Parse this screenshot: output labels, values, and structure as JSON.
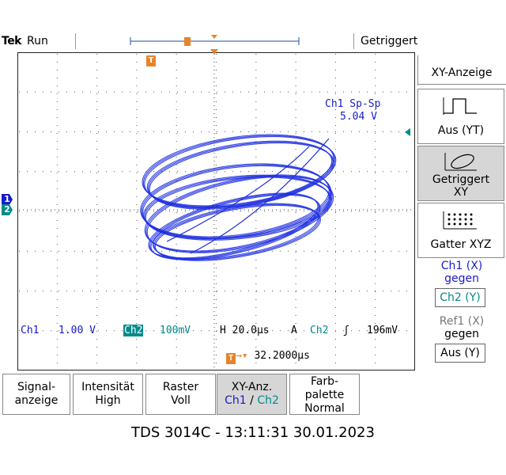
{
  "header": {
    "brand": "Tek",
    "run_state": "Run",
    "trigger_state": "Getriggert",
    "trigger_marker": "T"
  },
  "measurement": {
    "label": "Ch1 Sp-Sp",
    "value": "5.04 V"
  },
  "status": {
    "ch1_label": "Ch1",
    "ch1_scale": "1.00 V",
    "ch2_label": "Ch2",
    "ch2_scale": "100mV",
    "timebase": "H 20.0µs",
    "acq": "A",
    "trig_source": "Ch2",
    "trig_level": "196mV",
    "delay": "32.2000µs"
  },
  "side_menu": {
    "title": "XY-Anzeige",
    "btn_yt_label": "Aus (YT)",
    "btn_xy_line1": "Getriggert",
    "btn_xy_line2": "XY",
    "btn_xyz_label": "Gatter XYZ",
    "ch1_x_line1": "Ch1 (X)",
    "ch1_x_line2": "gegen",
    "ch2_y_box": "Ch2 (Y)",
    "ref1_line1": "Ref1 (X)",
    "ref1_line2": "gegen",
    "ref1_box": "Aus (Y)"
  },
  "bottom_menu": {
    "signal_l1": "Signal-",
    "signal_l2": "anzeige",
    "intensity_l1": "Intensität",
    "intensity_l2": "High",
    "raster_l1": "Raster",
    "raster_l2": "Voll",
    "xy_l1": "XY-Anz.",
    "xy_ch1": "Ch1",
    "xy_sep": "/",
    "xy_ch2": "Ch2",
    "palette_l1": "Farb-",
    "palette_l2": "palette",
    "palette_l3": "Normal"
  },
  "footer": {
    "text": "TDS 3014C - 13:11:31   30.01.2023"
  },
  "markers": {
    "ch1": "1",
    "ch2": "2"
  },
  "colors": {
    "trace": "#1f2fe0",
    "ch1": "#1a1acc",
    "ch2": "#008b8b",
    "trigger": "#e8832a"
  }
}
